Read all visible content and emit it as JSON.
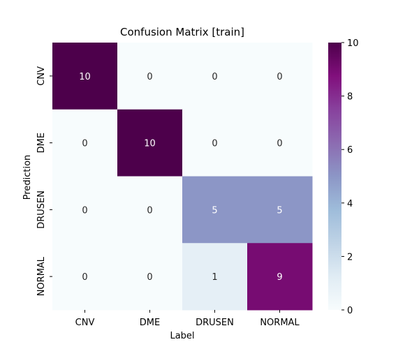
{
  "chart_data": {
    "type": "heatmap",
    "title": "Confusion Matrix [train]",
    "xlabel": "Label",
    "ylabel": "Prediction",
    "x_categories": [
      "CNV",
      "DME",
      "DRUSEN",
      "NORMAL"
    ],
    "y_categories": [
      "CNV",
      "DME",
      "DRUSEN",
      "NORMAL"
    ],
    "values": [
      [
        10,
        0,
        0,
        0
      ],
      [
        0,
        10,
        0,
        0
      ],
      [
        0,
        0,
        5,
        5
      ],
      [
        0,
        0,
        1,
        9
      ]
    ],
    "colorbar": {
      "min": 0,
      "max": 10,
      "ticks": [
        "0",
        "2",
        "4",
        "6",
        "8",
        "10"
      ]
    },
    "colormap": "BuPu",
    "colormap_stops": [
      "#f7fcfd",
      "#e0ecf4",
      "#bfd3e6",
      "#9ebcda",
      "#8c96c6",
      "#8c6bb1",
      "#88419d",
      "#810f7c",
      "#4d004b"
    ]
  }
}
